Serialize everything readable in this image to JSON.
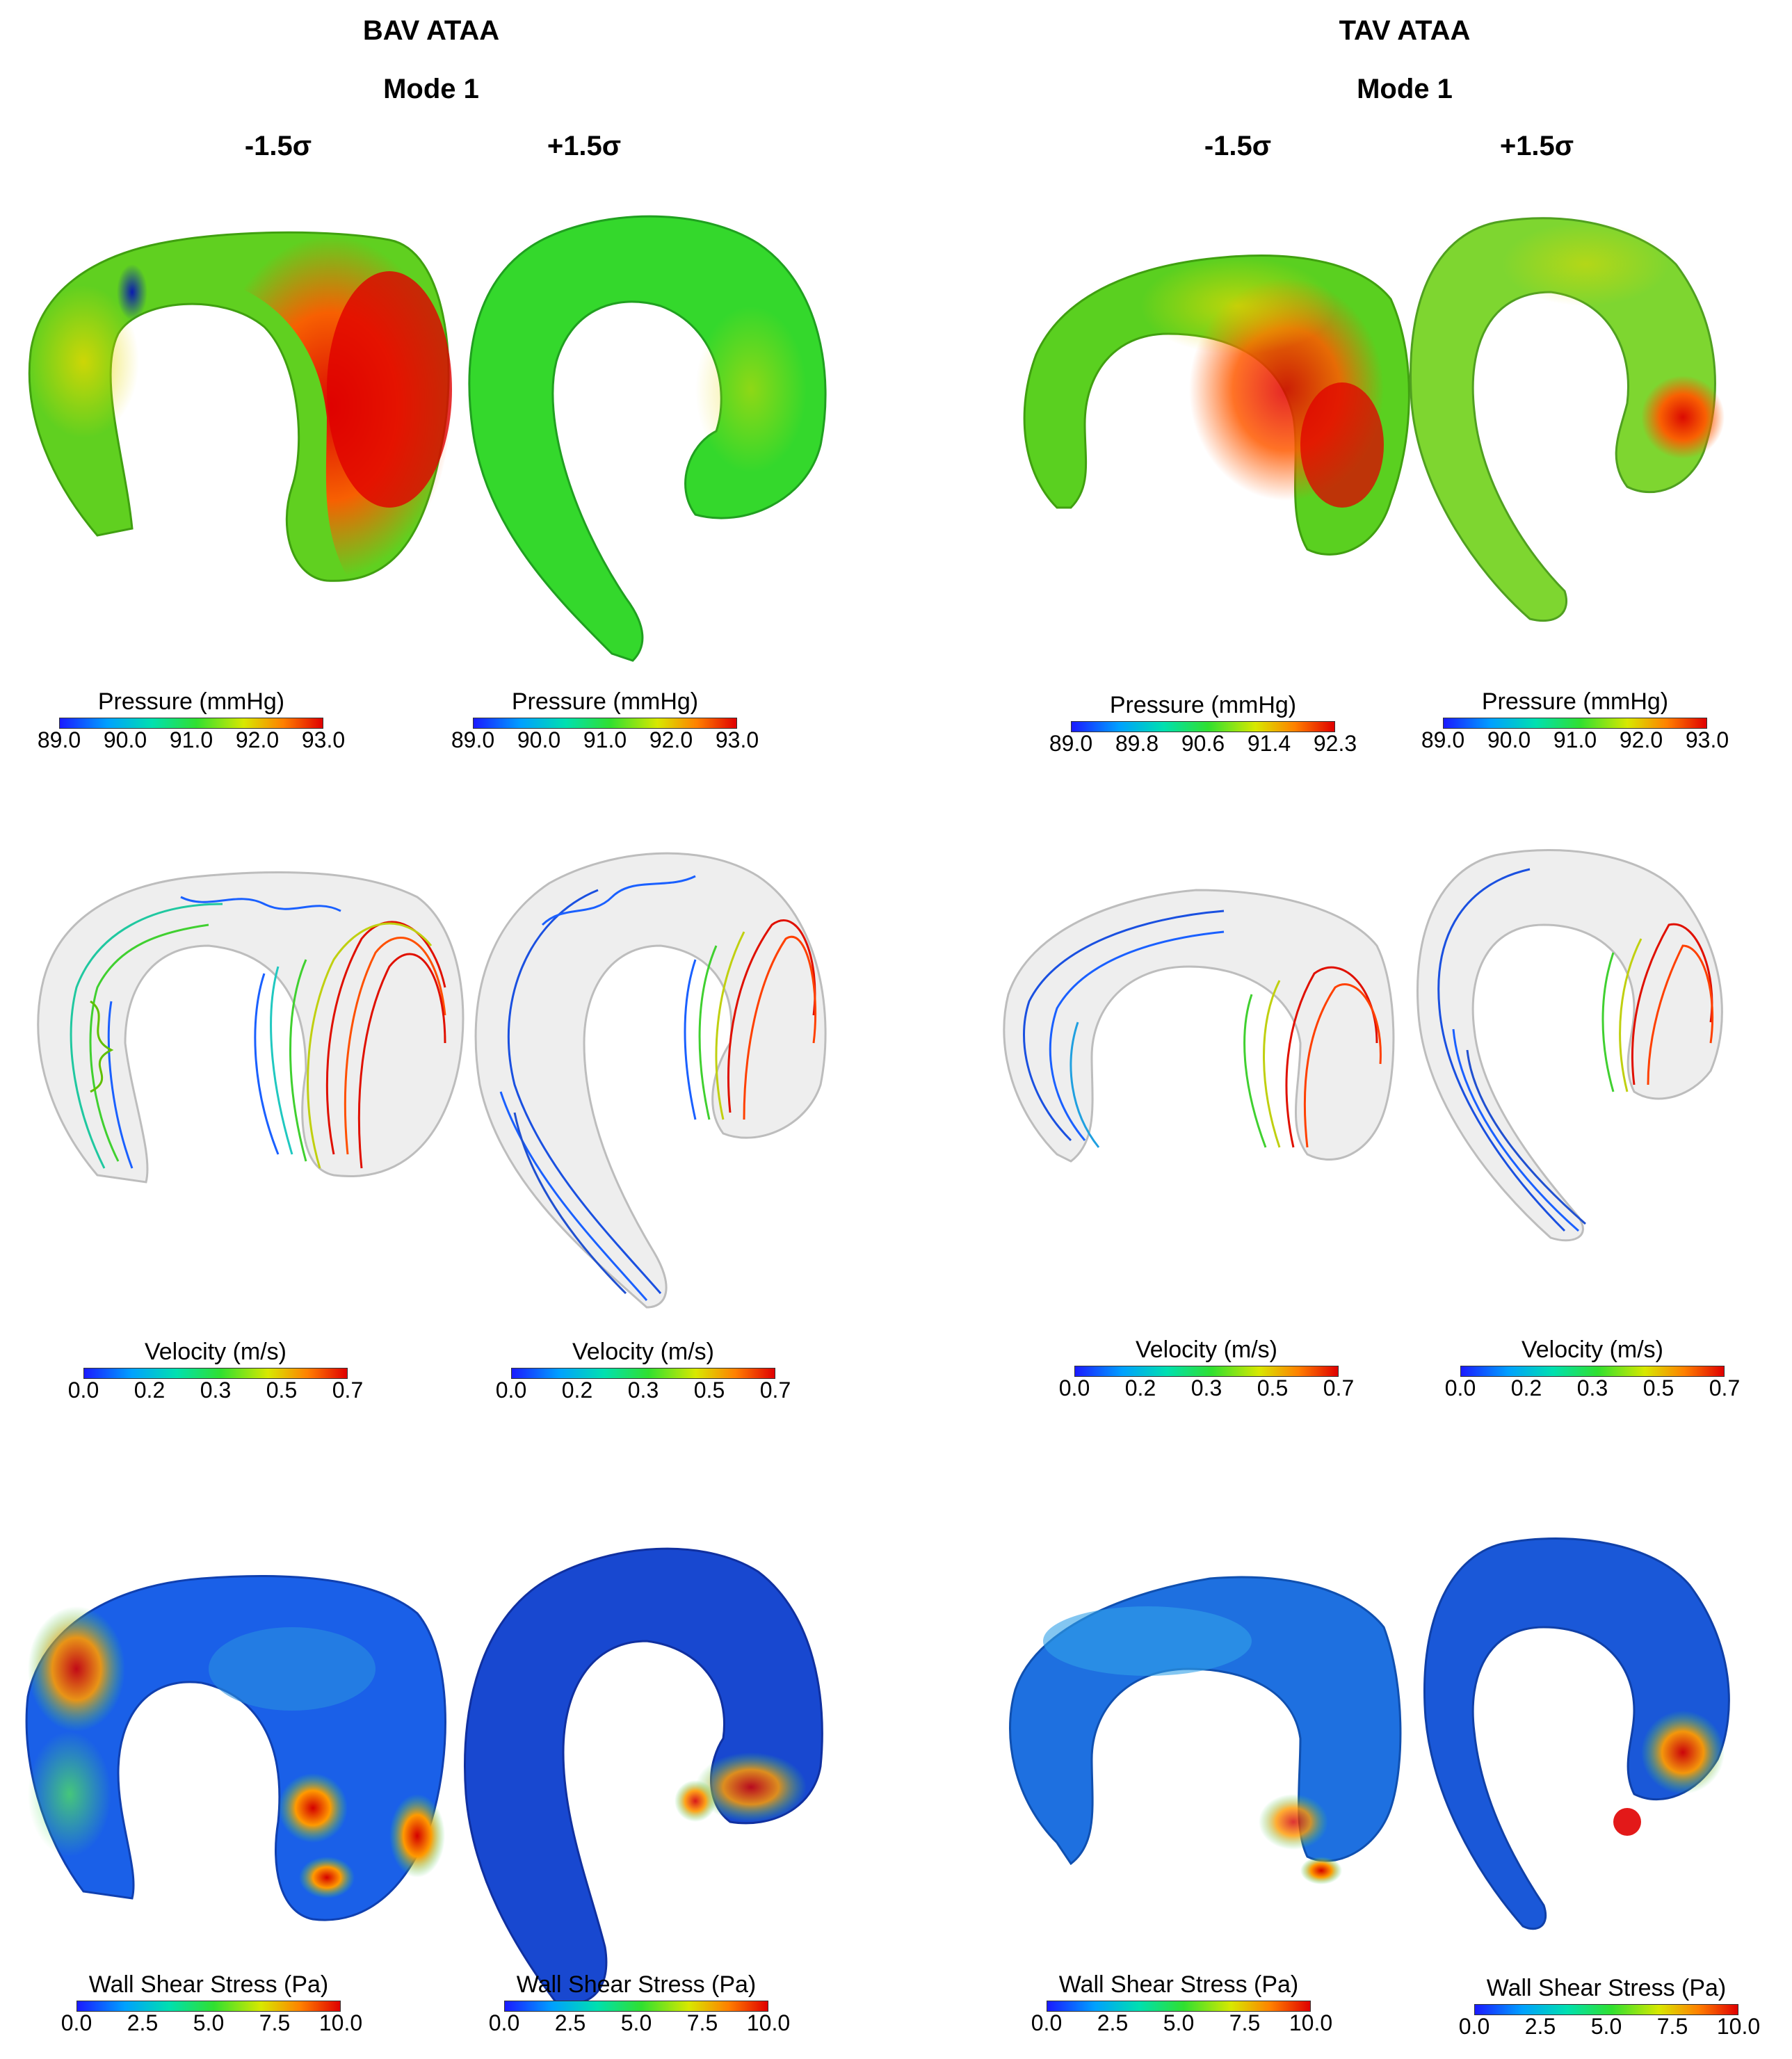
{
  "headers": {
    "bav_title": "BAV ATAA",
    "bav_mode": "Mode 1",
    "tav_title": "TAV ATAA",
    "tav_mode": "Mode 1",
    "bav_minus": "-1.5σ",
    "bav_plus": "+1.5σ",
    "tav_minus": "-1.5σ",
    "tav_plus": "+1.5σ"
  },
  "colorbars": [
    {
      "label": "Pressure (mmHg)",
      "ticks": [
        "89.0",
        "90.0",
        "91.0",
        "92.0",
        "93.0"
      ]
    },
    {
      "label": "Pressure (mmHg)",
      "ticks": [
        "89.0",
        "90.0",
        "91.0",
        "92.0",
        "93.0"
      ]
    },
    {
      "label": "Pressure (mmHg)",
      "ticks": [
        "89.0",
        "89.8",
        "90.6",
        "91.4",
        "92.3"
      ]
    },
    {
      "label": "Pressure (mmHg)",
      "ticks": [
        "89.0",
        "90.0",
        "91.0",
        "92.0",
        "93.0"
      ]
    },
    {
      "label": "Velocity (m/s)",
      "ticks": [
        "0.0",
        "0.2",
        "0.3",
        "0.5",
        "0.7"
      ]
    },
    {
      "label": "Velocity (m/s)",
      "ticks": [
        "0.0",
        "0.2",
        "0.3",
        "0.5",
        "0.7"
      ]
    },
    {
      "label": "Velocity (m/s)",
      "ticks": [
        "0.0",
        "0.2",
        "0.3",
        "0.5",
        "0.7"
      ]
    },
    {
      "label": "Velocity (m/s)",
      "ticks": [
        "0.0",
        "0.2",
        "0.3",
        "0.5",
        "0.7"
      ]
    },
    {
      "label": "Wall Shear Stress (Pa)",
      "ticks": [
        "0.0",
        "2.5",
        "5.0",
        "7.5",
        "10.0"
      ]
    },
    {
      "label": "Wall Shear Stress (Pa)",
      "ticks": [
        "0.0",
        "2.5",
        "5.0",
        "7.5",
        "10.0"
      ]
    },
    {
      "label": "Wall Shear Stress (Pa)",
      "ticks": [
        "0.0",
        "2.5",
        "5.0",
        "7.5",
        "10.0"
      ]
    },
    {
      "label": "Wall Shear Stress (Pa)",
      "ticks": [
        "0.0",
        "2.5",
        "5.0",
        "7.5",
        "10.0"
      ]
    }
  ],
  "colors": {
    "blue": "#1a1aff",
    "cyan": "#00c8ff",
    "green": "#2ee02e",
    "yellow": "#d8e800",
    "orange": "#ff8000",
    "red": "#e00000",
    "vessel_gray": "#e6e6e6"
  }
}
